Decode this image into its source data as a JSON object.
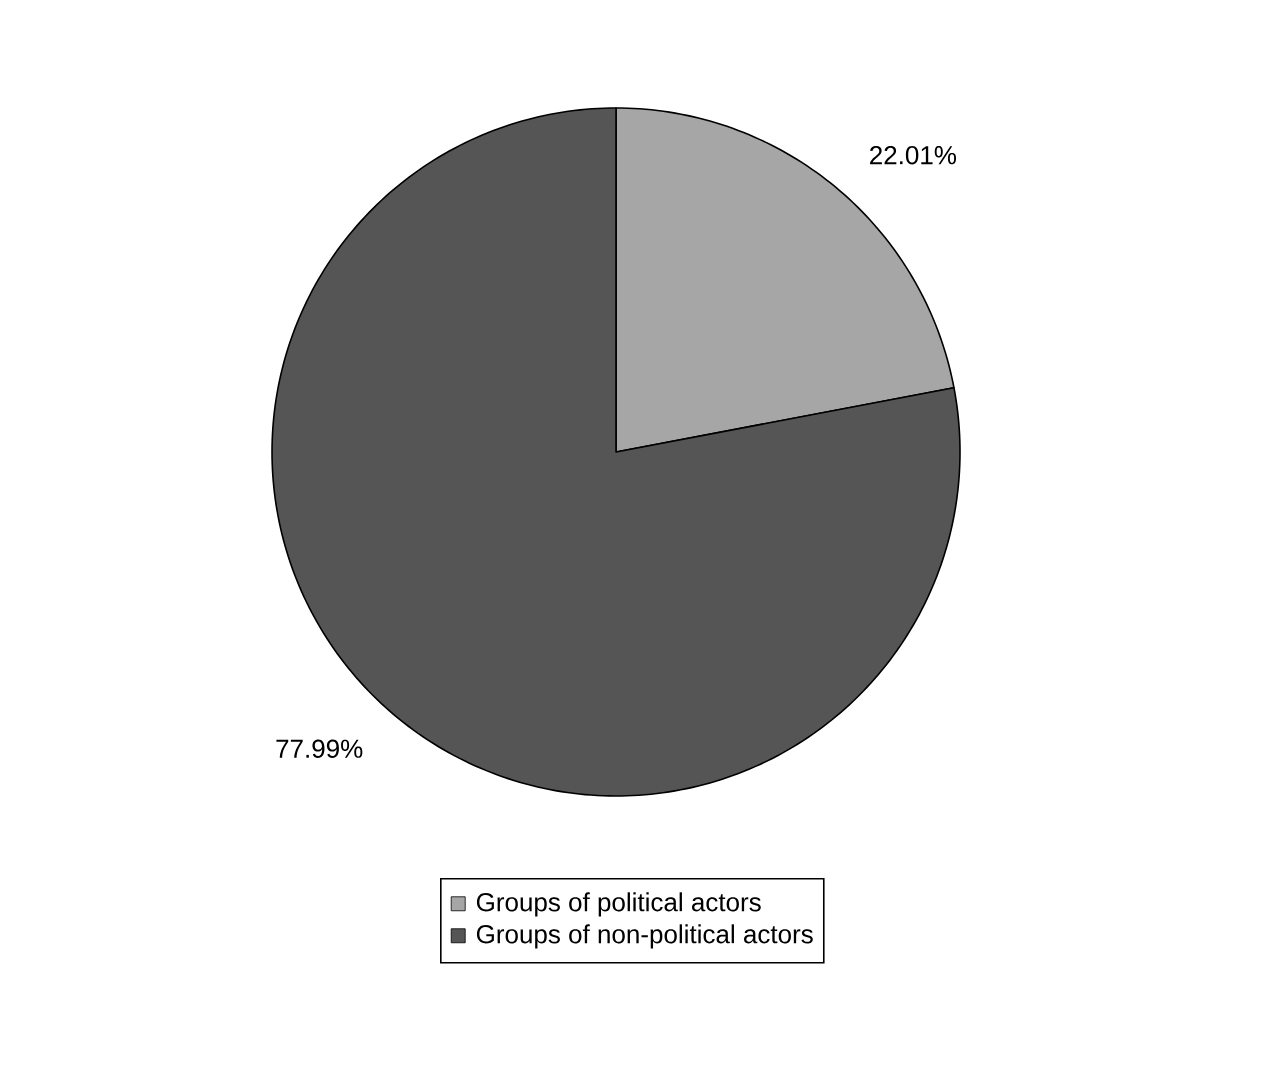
{
  "chart_data": {
    "type": "pie",
    "categories": [
      "Groups of political actors",
      "Groups of non-political actors"
    ],
    "values": [
      22.01,
      77.99
    ],
    "value_labels": [
      "22.01%",
      "77.99%"
    ],
    "colors": [
      "#a6a6a6",
      "#555555"
    ],
    "legend": "bottom"
  }
}
